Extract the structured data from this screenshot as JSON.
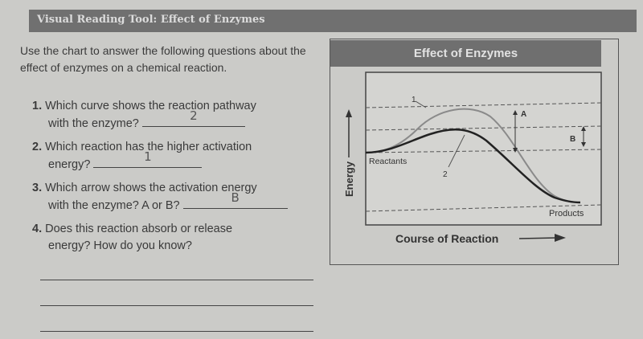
{
  "header": {
    "title": "Visual Reading Tool: Effect of Enzymes"
  },
  "intro": "Use the chart to answer the following questions about the effect of enzymes on a chemical reaction.",
  "questions": [
    {
      "number": "1.",
      "line1": "Which curve shows the reaction pathway",
      "line2": "with the enzyme?",
      "answer": "2"
    },
    {
      "number": "2.",
      "line1": "Which reaction has the higher activation",
      "line2": "energy?",
      "answer": "1"
    },
    {
      "number": "3.",
      "line1": "Which arrow shows the activation energy",
      "line2": "with the enzyme? A or B?",
      "answer": "B"
    },
    {
      "number": "4.",
      "line1": "Does this reaction absorb or release",
      "line2": "energy? How do you know?",
      "answer": ""
    }
  ],
  "diagram": {
    "title": "Effect of Enzymes",
    "y_label": "Energy",
    "x_label": "Course of Reaction",
    "reactants_label": "Reactants",
    "products_label": "Products",
    "curve1_label": "1",
    "curve2_label": "2",
    "arrow_a_label": "A",
    "arrow_b_label": "B"
  }
}
